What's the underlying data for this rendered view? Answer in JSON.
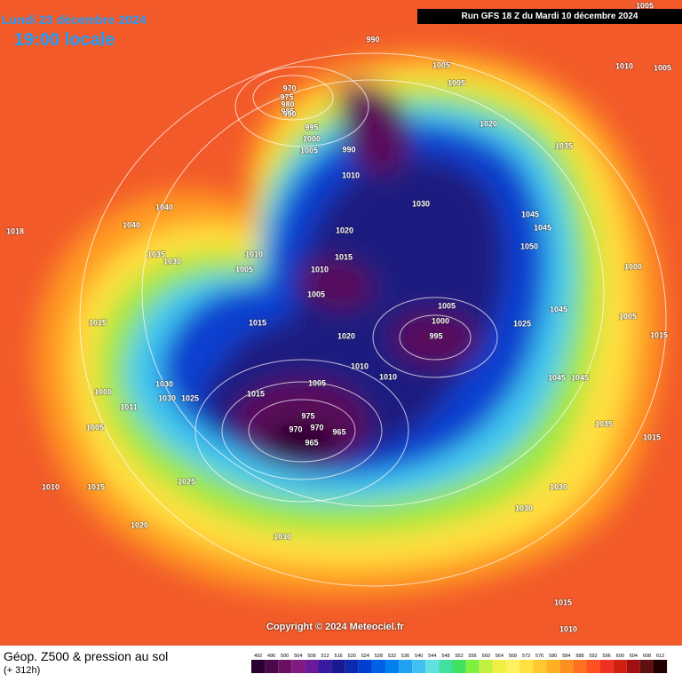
{
  "header": {
    "date": "Lundi 23 décembre 2024",
    "time": "19:00 locale",
    "run": "Run GFS 18 Z du Mardi 10 décembre 2024"
  },
  "map": {
    "pressure_labels": [
      990,
      1005,
      1005,
      1010,
      1005,
      1005,
      970,
      975,
      980,
      985,
      990,
      995,
      1000,
      1005,
      990,
      1020,
      1035,
      1010,
      1030,
      1040,
      1040,
      1018,
      1035,
      1030,
      1010,
      1005,
      1020,
      1015,
      1010,
      1005,
      1045,
      1045,
      1050,
      1000,
      1005,
      1000,
      995,
      1025,
      1045,
      1015,
      1015,
      1020,
      1010,
      1010,
      1030,
      1015,
      1005,
      975,
      970,
      965,
      970,
      965,
      1000,
      1011,
      1025,
      1030,
      1005,
      1045,
      1045,
      1035,
      1015,
      1010,
      1015,
      1025,
      1030,
      1030,
      1020,
      1030,
      1015,
      1010,
      1015,
      1005
    ]
  },
  "footer": {
    "title": "Géop. Z500 & pression au sol",
    "subtitle": "(+ 312h)",
    "copyright": "Copyright © 2024 Meteociel.fr"
  },
  "legend": {
    "values": [
      492,
      496,
      500,
      504,
      508,
      512,
      516,
      520,
      524,
      528,
      532,
      536,
      540,
      544,
      548,
      552,
      556,
      560,
      564,
      568,
      572,
      576,
      580,
      584,
      588,
      592,
      596,
      600,
      604,
      608,
      612
    ],
    "colors": [
      "#2a0030",
      "#4a0a4a",
      "#6a1060",
      "#801a80",
      "#6a1a9a",
      "#3a1aa0",
      "#1a1a90",
      "#0a2ab0",
      "#0040d0",
      "#0060e8",
      "#0080f0",
      "#20a0f0",
      "#40c0f0",
      "#60e0e0",
      "#40e0a0",
      "#40e060",
      "#80f040",
      "#c0f040",
      "#f0f040",
      "#fff060",
      "#ffe040",
      "#ffc830",
      "#ffb020",
      "#ff9020",
      "#ff7020",
      "#ff5020",
      "#f03020",
      "#d02010",
      "#a01010",
      "#601010",
      "#200000"
    ]
  }
}
